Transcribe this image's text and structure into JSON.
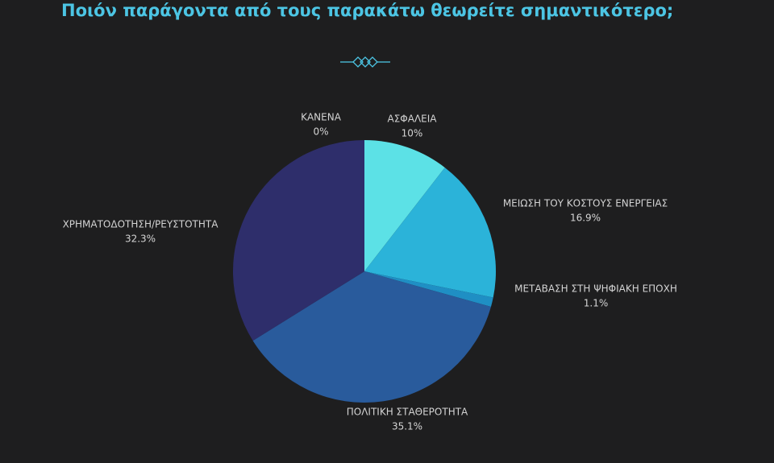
{
  "chart_data": {
    "type": "pie",
    "title": "Ποιόν παράγοντα από τους παρακάτω θεωρείτε σημαντικότερο;",
    "categories": [
      "ΑΣΦΑΛΕΙΑ",
      "ΜΕΙΩΣΗ ΤΟΥ ΚΟΣΤΟΥΣ ΕΝΕΡΓΕΙΑΣ",
      "ΜΕΤΑΒΑΣΗ ΣΤΗ ΨΗΦΙΑΚΗ ΕΠΟΧΗ",
      "ΠΟΛΙΤΙΚΗ ΣΤΑΘΕΡΟΤΗΤΑ",
      "ΧΡΗΜΑΤΟΔΟΤΗΣΗ/ΡΕΥΣΤΟΤΗΤΑ",
      "ΚΑΝΕΝΑ"
    ],
    "values": [
      10,
      16.9,
      1.1,
      35.1,
      32.3,
      0
    ],
    "value_labels": [
      "10%",
      "16.9%",
      "1.1%",
      "35.1%",
      "32.3%",
      "0%"
    ],
    "colors": [
      "#5ce1e6",
      "#2bb3d9",
      "#1f8fc4",
      "#295b9c",
      "#2e2e6b",
      "#6a4a8a"
    ]
  }
}
